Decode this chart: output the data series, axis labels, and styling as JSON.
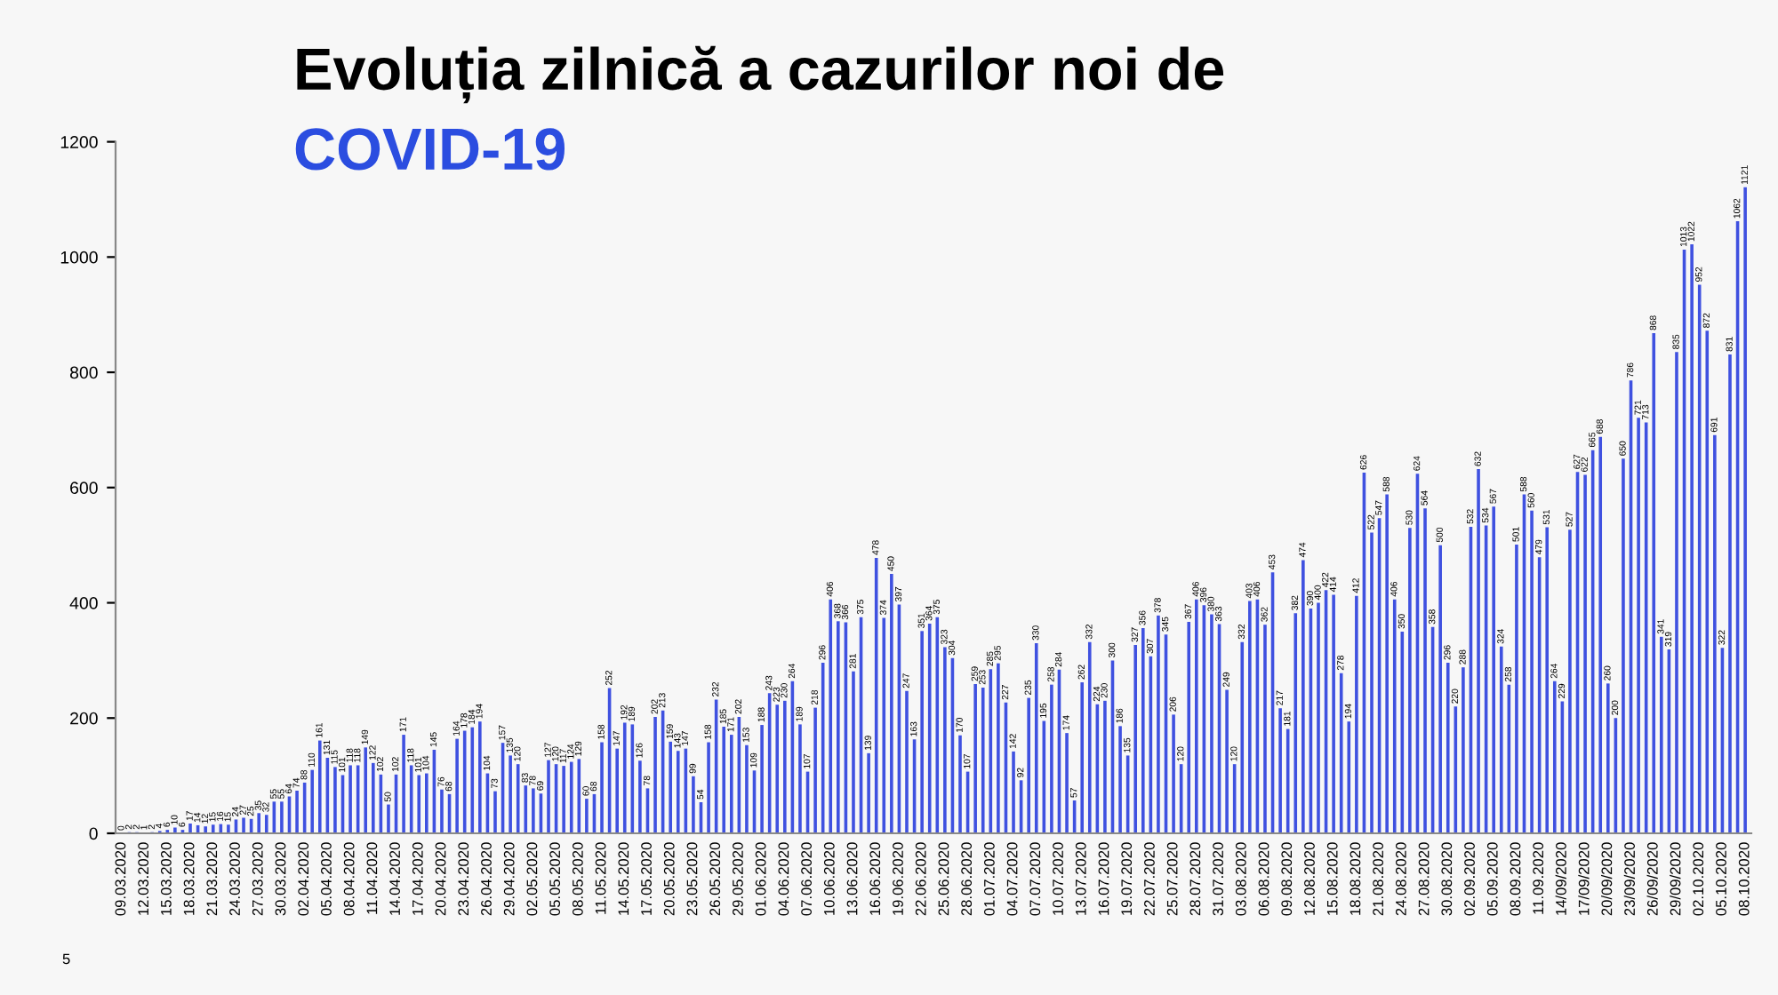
{
  "chart_data": {
    "type": "bar",
    "title": "Evoluția zilnică a cazurilor noi de",
    "subtitle": "COVID-19",
    "annotations": [
      "5"
    ],
    "categories": [
      "09.03.2020",
      null,
      null,
      "12.03.2020",
      null,
      null,
      "15.03.2020",
      null,
      null,
      "18.03.2020",
      null,
      null,
      "21.03.2020",
      null,
      null,
      "24.03.2020",
      null,
      null,
      "27.03.2020",
      null,
      null,
      "30.03.2020",
      null,
      null,
      "02.04.2020",
      null,
      null,
      "05.04.2020",
      null,
      null,
      "08.04.2020",
      null,
      null,
      "11.04.2020",
      null,
      null,
      "14.04.2020",
      null,
      null,
      "17.04.2020",
      null,
      null,
      "20.04.2020",
      null,
      null,
      "23.04.2020",
      null,
      null,
      "26.04.2020",
      null,
      null,
      "29.04.2020",
      null,
      null,
      "02.05.2020",
      null,
      null,
      "05.05.2020",
      null,
      null,
      "08.05.2020",
      null,
      null,
      "11.05.2020",
      null,
      null,
      "14.05.2020",
      null,
      null,
      "17.05.2020",
      null,
      null,
      "20.05.2020",
      null,
      null,
      "23.05.2020",
      null,
      null,
      "26.05.2020",
      null,
      null,
      "29.05.2020",
      null,
      null,
      "01.06.2020",
      null,
      null,
      "04.06.2020",
      null,
      null,
      "07.06.2020",
      null,
      null,
      "10.06.2020",
      null,
      null,
      "13.06.2020",
      null,
      null,
      "16.06.2020",
      null,
      null,
      "19.06.2020",
      null,
      null,
      "22.06.2020",
      null,
      null,
      "25.06.2020",
      null,
      null,
      "28.06.2020",
      null,
      null,
      "01.07.2020",
      null,
      null,
      "04.07.2020",
      null,
      null,
      "07.07.2020",
      null,
      null,
      "10.07.2020",
      null,
      null,
      "13.07.2020",
      null,
      null,
      "16.07.2020",
      null,
      null,
      "19.07.2020",
      null,
      null,
      "22.07.2020",
      null,
      null,
      "25.07.2020",
      null,
      null,
      "28.07.2020",
      null,
      null,
      "31.07.2020",
      null,
      null,
      "03.08.2020",
      null,
      null,
      "06.08.2020",
      null,
      null,
      "09.08.2020",
      null,
      null,
      "12.08.2020",
      null,
      null,
      "15.08.2020",
      null,
      null,
      "18.08.2020",
      null,
      null,
      "21.08.2020",
      null,
      null,
      "24.08.2020",
      null,
      null,
      "27.08.2020",
      null,
      null,
      "30.08.2020",
      null,
      null,
      "02.09.2020",
      null,
      null,
      "05.09.2020",
      null,
      null,
      "08.09.2020",
      null,
      null,
      "11.09.2020",
      null,
      null,
      "14/09/2020",
      null,
      null,
      "17/09/2020",
      null,
      null,
      "20/09/2020",
      null,
      null,
      "23/09/2020",
      null,
      null,
      "26/09/2020",
      null,
      null,
      "29/09/2020",
      null,
      null,
      "02.10.2020",
      null,
      null,
      "05.10.2020",
      null,
      null,
      "08.10.2020"
    ],
    "values": [
      0,
      2,
      2,
      1,
      2,
      4,
      6,
      10,
      6,
      17,
      14,
      12,
      15,
      16,
      15,
      24,
      27,
      25,
      35,
      32,
      55,
      55,
      64,
      74,
      88,
      110,
      161,
      131,
      115,
      101,
      118,
      118,
      149,
      122,
      102,
      50,
      102,
      171,
      118,
      101,
      104,
      145,
      76,
      68,
      164,
      178,
      184,
      194,
      104,
      73,
      157,
      135,
      120,
      83,
      78,
      69,
      127,
      120,
      117,
      124,
      129,
      60,
      68,
      158,
      252,
      147,
      192,
      189,
      126,
      78,
      202,
      213,
      159,
      143,
      147,
      99,
      54,
      158,
      232,
      185,
      171,
      202,
      153,
      109,
      188,
      243,
      223,
      230,
      264,
      189,
      107,
      218,
      296,
      406,
      368,
      366,
      281,
      375,
      139,
      478,
      374,
      450,
      397,
      247,
      163,
      351,
      364,
      375,
      323,
      304,
      170,
      107,
      259,
      253,
      285,
      295,
      227,
      142,
      92,
      235,
      330,
      195,
      258,
      284,
      174,
      57,
      262,
      332,
      224,
      230,
      300,
      186,
      135,
      327,
      356,
      307,
      378,
      345,
      206,
      120,
      367,
      406,
      396,
      380,
      363,
      249,
      120,
      332,
      403,
      406,
      362,
      453,
      217,
      181,
      382,
      474,
      390,
      400,
      422,
      414,
      278,
      194,
      412,
      626,
      522,
      547,
      588,
      406,
      350,
      530,
      624,
      564,
      358,
      500,
      296,
      220,
      288,
      532,
      632,
      534,
      567,
      324,
      258,
      501,
      588,
      560,
      479,
      531,
      264,
      229,
      527,
      627,
      622,
      665,
      688,
      260,
      200,
      650,
      786,
      721,
      713,
      868,
      341,
      319,
      835,
      1013,
      1022,
      952,
      872,
      691,
      322,
      831,
      1062,
      1121
    ],
    "color": "#3f51e0",
    "ylim": [
      0,
      1200
    ],
    "yticks": [
      0,
      200,
      400,
      600,
      800,
      1000,
      1200
    ],
    "data_labels": true,
    "grid": false,
    "legend": false
  }
}
